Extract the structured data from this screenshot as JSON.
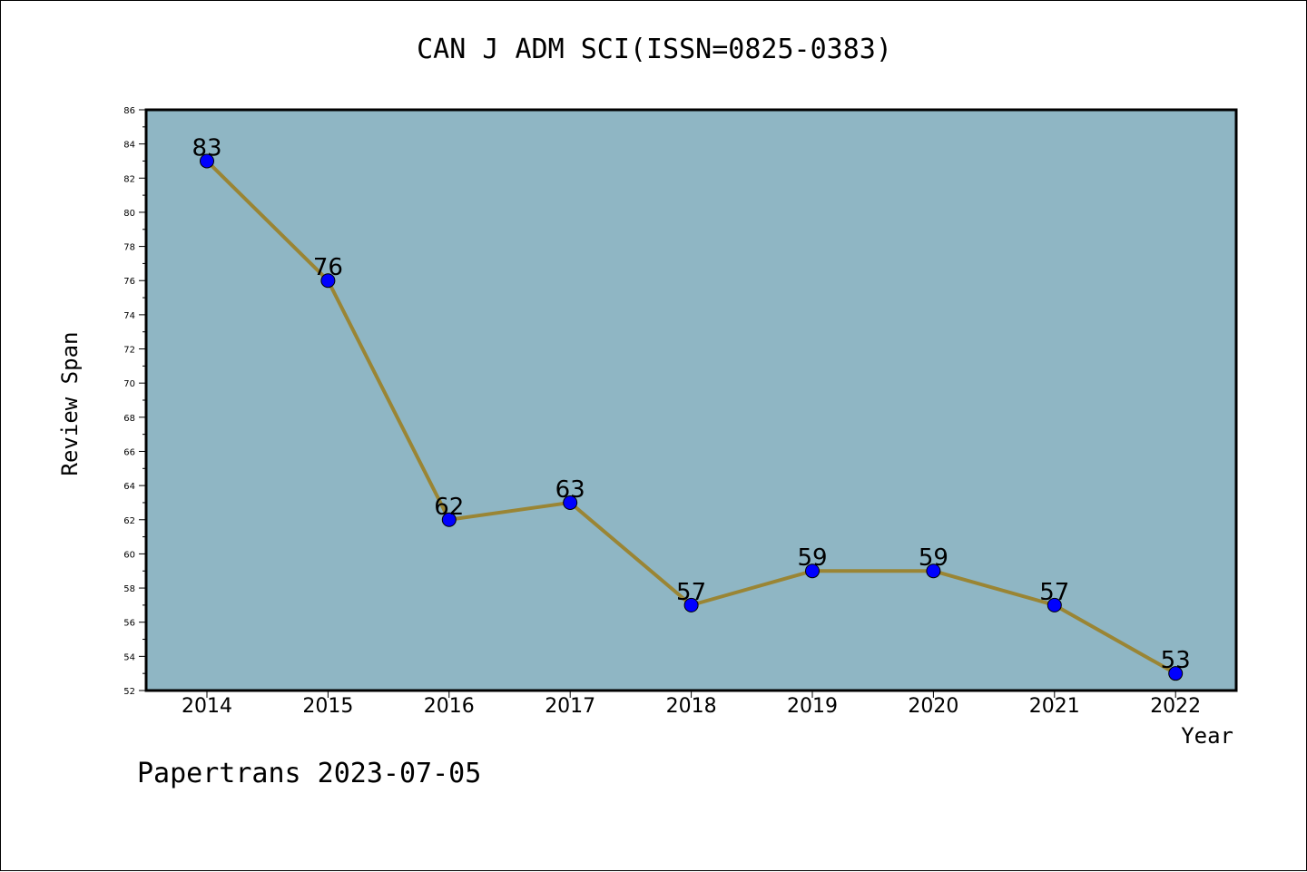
{
  "title": "CAN J ADM SCI(ISSN=0825-0383)",
  "footer": "Papertrans 2023-07-05",
  "colors": {
    "plot_background": "#8fb6c4",
    "line": "#9a8534",
    "marker": "#0000ff"
  },
  "chart_data": {
    "type": "line",
    "title": "CAN J ADM SCI(ISSN=0825-0383)",
    "xlabel": "Year",
    "ylabel": "Review Span",
    "x": [
      "2014",
      "2015",
      "2016",
      "2017",
      "2018",
      "2019",
      "2020",
      "2021",
      "2022"
    ],
    "series": [
      {
        "values": [
          83,
          76,
          62,
          63,
          57,
          59,
          59,
          57,
          53
        ]
      }
    ],
    "ylim": [
      52,
      86
    ],
    "yticks": [
      52,
      54,
      56,
      58,
      60,
      62,
      64,
      66,
      68,
      70,
      72,
      74,
      76,
      78,
      80,
      82,
      84,
      86
    ],
    "data_labels": true,
    "grid": false,
    "legend": "none"
  }
}
